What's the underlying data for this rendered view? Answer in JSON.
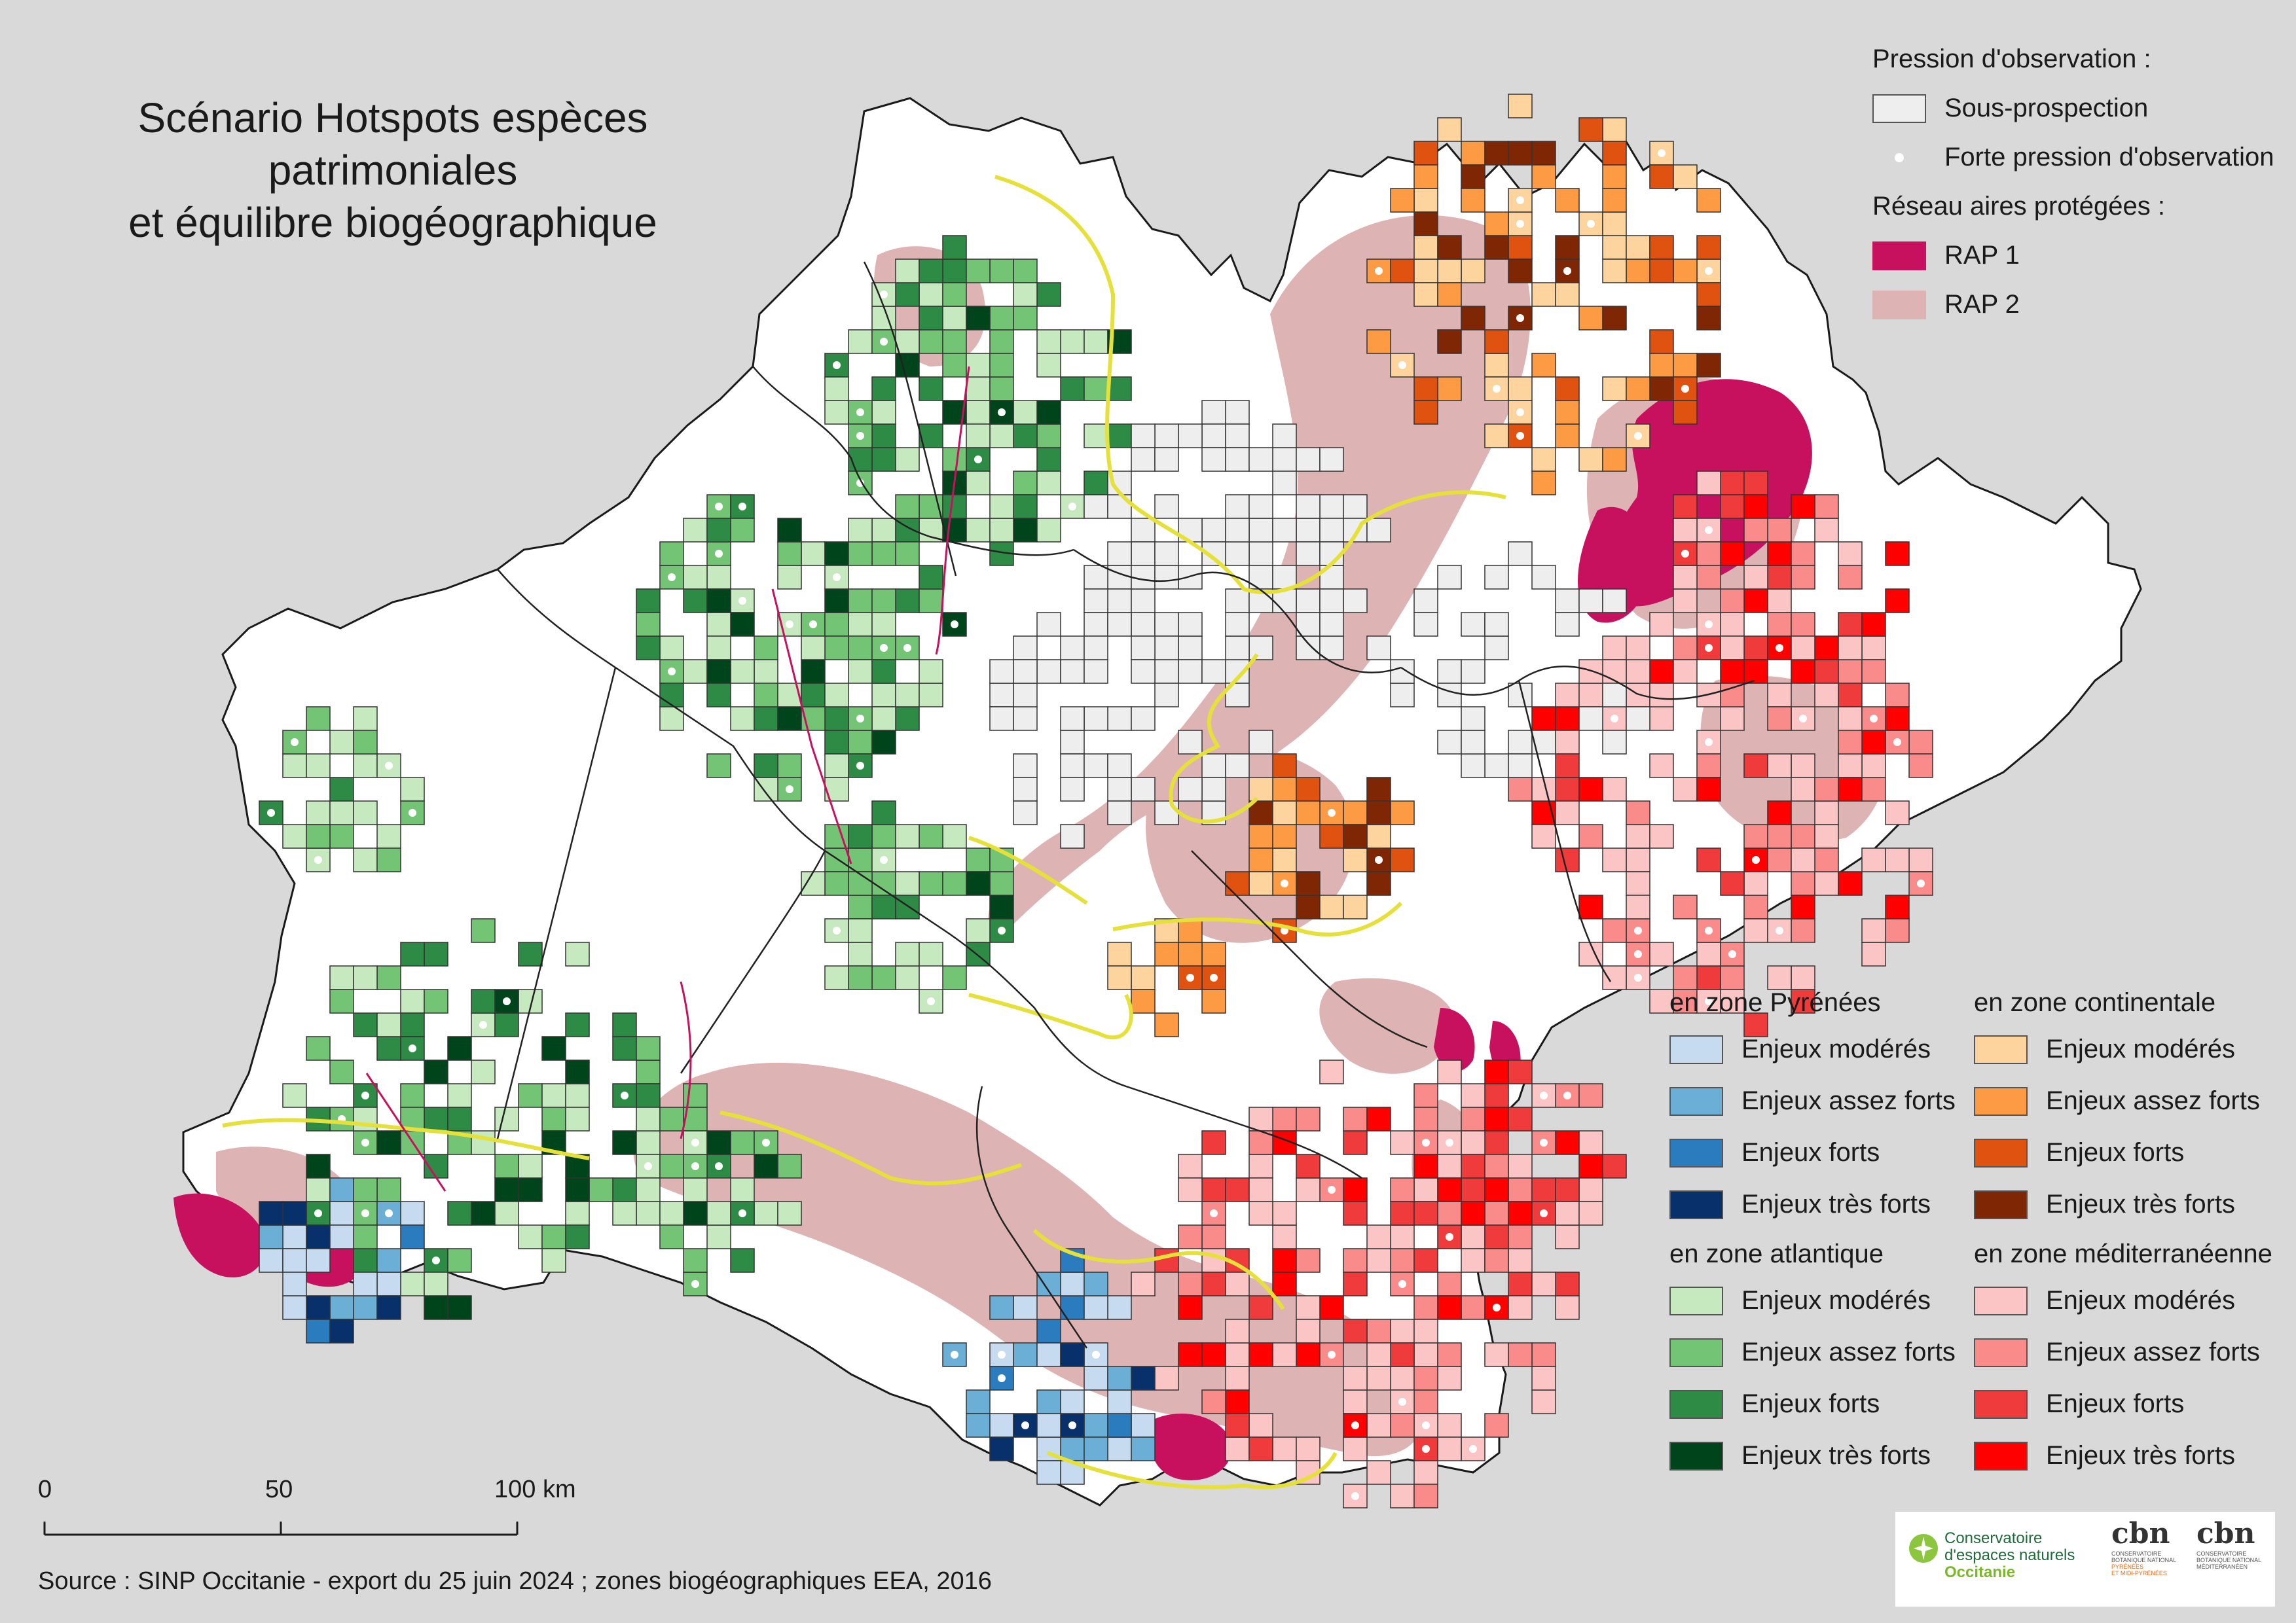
{
  "title": {
    "line1": "Scénario Hotspots espèces",
    "line2": "patrimoniales",
    "line3": "et équilibre biogéographique"
  },
  "legend_top": {
    "pressure_heading": "Pression d'observation :",
    "under_prospection": "Sous-prospection",
    "strong_pressure": "Forte pression d'observation",
    "protected_heading": "Réseau aires protégées :",
    "rap1": "RAP 1",
    "rap2": "RAP 2"
  },
  "legend_zones": {
    "pyrenees": {
      "heading": "en zone Pyrénées",
      "items": [
        "Enjeux modérés",
        "Enjeux assez forts",
        "Enjeux forts",
        "Enjeux très forts"
      ],
      "colors": [
        "#c6dbef",
        "#6baed6",
        "#2b7bbf",
        "#08306b"
      ]
    },
    "continental": {
      "heading": "en zone continentale",
      "items": [
        "Enjeux modérés",
        "Enjeux assez forts",
        "Enjeux forts",
        "Enjeux très forts"
      ],
      "colors": [
        "#fdd49e",
        "#fd9a44",
        "#e0520f",
        "#7f2704"
      ]
    },
    "atlantique": {
      "heading": "en zone atlantique",
      "items": [
        "Enjeux modérés",
        "Enjeux assez forts",
        "Enjeux forts",
        "Enjeux très forts"
      ],
      "colors": [
        "#c7e9c0",
        "#74c476",
        "#2e8b45",
        "#00441b"
      ]
    },
    "mediterraneenne": {
      "heading": "en zone méditerranéenne",
      "items": [
        "Enjeux modérés",
        "Enjeux assez forts",
        "Enjeux forts",
        "Enjeux très forts"
      ],
      "colors": [
        "#fcc5c5",
        "#f98b8b",
        "#ef3b3b",
        "#ff0000"
      ]
    }
  },
  "colors": {
    "background": "#d9d9d9",
    "region": "#ffffff",
    "rap1": "#c7115f",
    "rap2": "#ddb3b3",
    "under_prospection": "#eeeeee",
    "zone_boundary": "#e6e03a"
  },
  "scale": {
    "label_0": "0",
    "label_50": "50",
    "label_100": "100 km"
  },
  "source": "Source : SINP Occitanie - export du 25 juin 2024 ; zones biogéographiques EEA, 2016",
  "logos": {
    "cen_line1": "Conservatoire",
    "cen_line2": "d'espaces naturels",
    "cen_line3": "Occitanie",
    "cbn": "cbn",
    "cbn_pyr_line1": "CONSERVATOIRE",
    "cbn_pyr_line2": "BOTANIQUE NATIONAL",
    "cbn_pyr_line3": "PYRÉNÉES",
    "cbn_pyr_line4": "ET MIDI-PYRÉNÉES",
    "cbn_med_line1": "CONSERVATOIRE",
    "cbn_med_line2": "BOTANIQUE NATIONAL",
    "cbn_med_line3": "MÉDITERRANÉEN"
  }
}
